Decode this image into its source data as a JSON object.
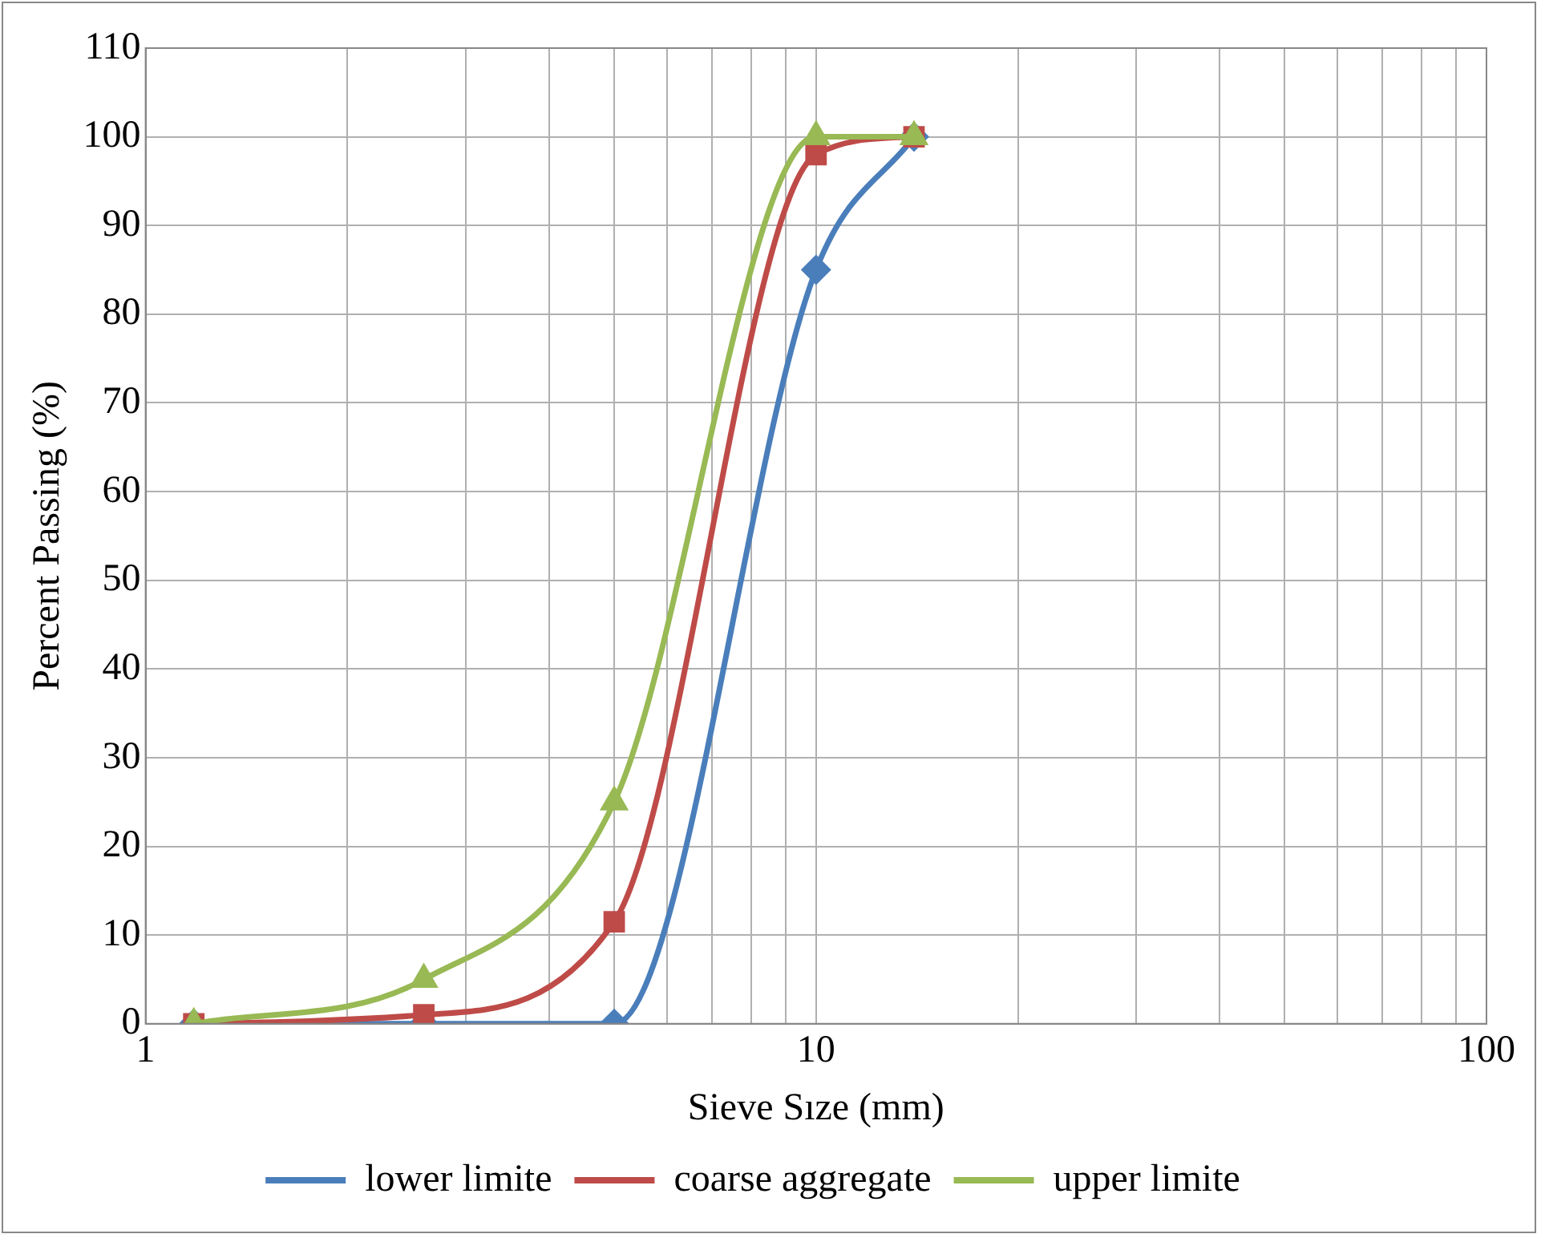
{
  "chart_data": {
    "type": "line",
    "xlabel": "Sieve Sıze (mm)",
    "ylabel": "Percent Passing (%)",
    "x": [
      1.18,
      2.6,
      5,
      10,
      14
    ],
    "series": [
      {
        "name": "lower limite",
        "color": "#4a7ebb",
        "marker": "diamond",
        "values": [
          0,
          0,
          0,
          85,
          100
        ]
      },
      {
        "name": "coarse aggregate",
        "color": "#be4b48",
        "marker": "square",
        "values": [
          0,
          1,
          11.5,
          98,
          100
        ]
      },
      {
        "name": "upper limite",
        "color": "#98b954",
        "marker": "triangle",
        "values": [
          0,
          5,
          25,
          100,
          100
        ]
      }
    ],
    "log": "x",
    "xlim": [
      1,
      100
    ],
    "xticks": [
      1,
      {
        "value": 2,
        "label": null
      },
      {
        "value": 3,
        "label": null
      },
      {
        "value": 4,
        "label": null
      },
      {
        "value": 5,
        "label": null
      },
      {
        "value": 6,
        "label": null
      },
      {
        "value": 7,
        "label": null
      },
      {
        "value": 8,
        "label": null
      },
      {
        "value": 9,
        "label": null
      },
      10,
      {
        "value": 20,
        "label": null
      },
      {
        "value": 30,
        "label": null
      },
      {
        "value": 40,
        "label": null
      },
      {
        "value": 50,
        "label": null
      },
      {
        "value": 60,
        "label": null
      },
      {
        "value": 70,
        "label": null
      },
      {
        "value": 80,
        "label": null
      },
      {
        "value": 90,
        "label": null
      },
      100
    ],
    "ylim": [
      0,
      110
    ],
    "yticks": [
      0,
      10,
      20,
      30,
      40,
      50,
      60,
      70,
      80,
      90,
      100,
      110
    ],
    "grid": true,
    "legend": "bottom"
  }
}
